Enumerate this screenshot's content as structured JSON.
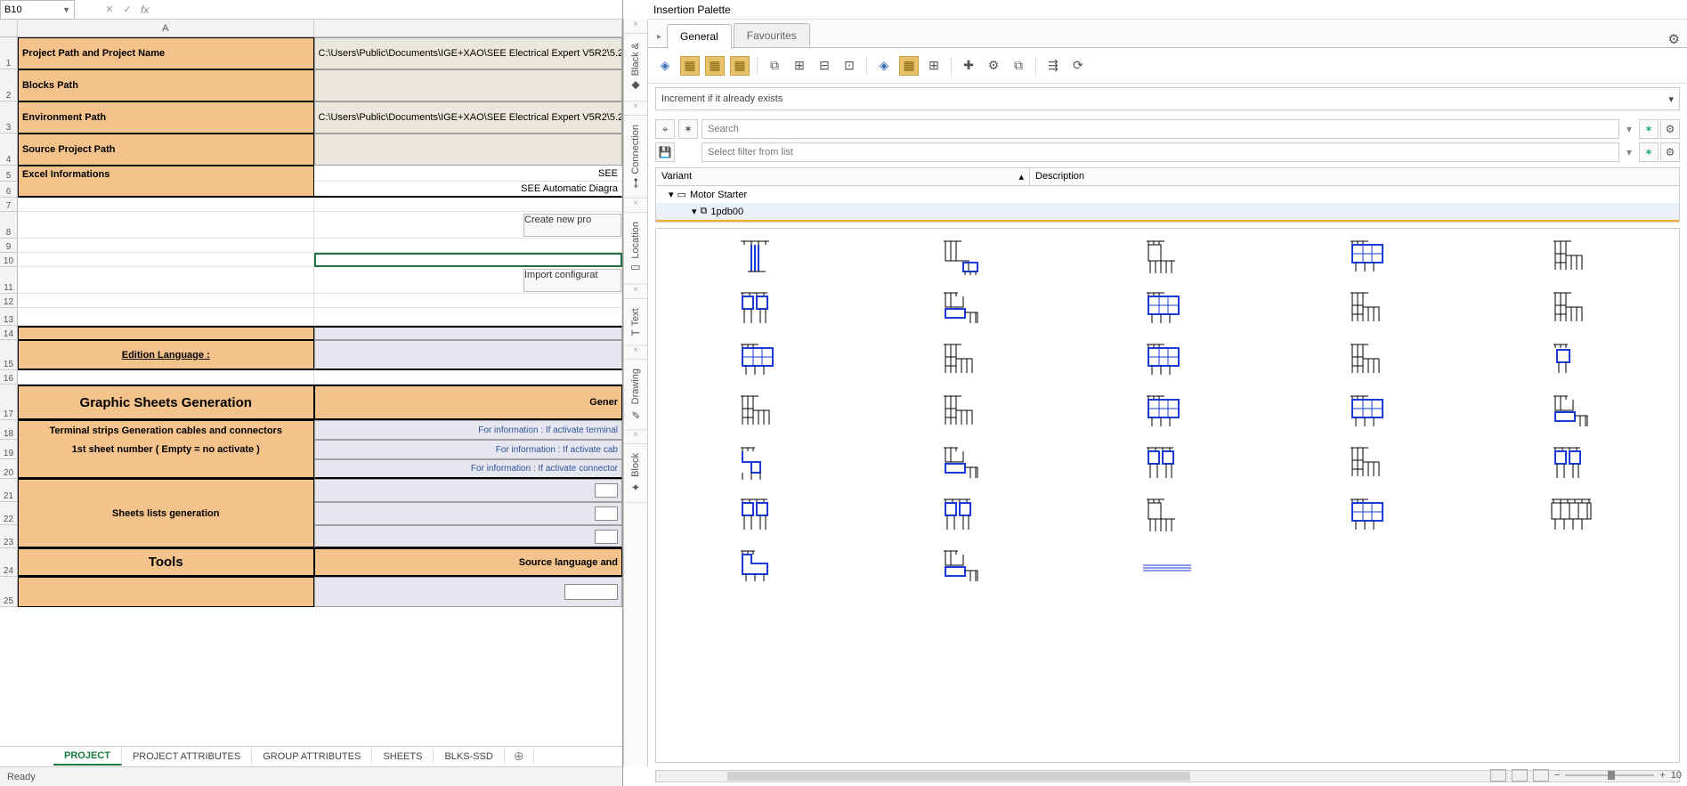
{
  "formula_bar": {
    "cell_ref": "B10"
  },
  "col_headers": [
    "A"
  ],
  "rows": {
    "r1": {
      "a": "Project Path and Project Name",
      "b": "C:\\Users\\Public\\Documents\\IGE+XAO\\SEE Electrical Expert V5R2\\5.2"
    },
    "r2": {
      "a": "Blocks Path",
      "b": ""
    },
    "r3": {
      "a": "Environment Path",
      "b": "C:\\Users\\Public\\Documents\\IGE+XAO\\SEE Electrical Expert V5R2\\5.2"
    },
    "r4": {
      "a": "Source Project Path",
      "b": ""
    },
    "r5": {
      "a": "Excel Informations",
      "b": "SEE"
    },
    "r6": {
      "b": "SEE Automatic Diagra"
    },
    "r8": {
      "b": "Create new pro"
    },
    "r11": {
      "b": "Import configurat"
    },
    "r15": {
      "a": "Edition Language :"
    },
    "r17": {
      "a": "Graphic Sheets Generation",
      "b": "Gener"
    },
    "r18": {
      "a": "Terminal strips Generation cables and connectors",
      "b": "For information : If activate terminal "
    },
    "r19": {
      "a": "1st sheet number ( Empty = no activate )",
      "b": "For information : If activate cab"
    },
    "r20": {
      "b": "For information : If activate connector"
    },
    "r22": {
      "a": "Sheets lists generation"
    },
    "r24": {
      "a": "Tools",
      "b": "Source language and"
    }
  },
  "sheet_tabs": [
    "PROJECT",
    "PROJECT ATTRIBUTES",
    "GROUP ATTRIBUTES",
    "SHEETS",
    "BLKS-SSD"
  ],
  "status_left": "Ready",
  "zoom_value": "10",
  "rail_tabs": [
    "Black &",
    "Connection",
    "Location",
    "Text",
    "Drawing",
    "Block"
  ],
  "palette": {
    "title": "Insertion Palette",
    "tabs": [
      "General",
      "Favourites"
    ],
    "increment_label": "Increment if it already exists",
    "search_placeholder": "Search",
    "filter_placeholder": "Select filter from list",
    "col_variant": "Variant",
    "col_desc": "Description",
    "tree_root": "Motor Starter",
    "tree_child": "1pdb00",
    "thumb_variants": [
      "v1",
      "v2",
      "v3",
      "v4",
      "v5",
      "v6",
      "v7",
      "v4",
      "v5",
      "v5",
      "v4",
      "v5",
      "v4",
      "v5",
      "v8",
      "v5",
      "v5",
      "v4",
      "v4",
      "v7",
      "v9",
      "v7",
      "v6",
      "v5",
      "v6",
      "v6",
      "v6",
      "v3",
      "v4",
      "v10",
      "v11",
      "v7",
      "line",
      "",
      ""
    ]
  },
  "colors": {
    "orange": "#f4c38c",
    "beige": "#eae8dc",
    "lavender": "#e6e6f0",
    "excel_green": "#217346",
    "tab_green": "#1a7a3f",
    "schematic_blue": "#1b3bd6"
  }
}
